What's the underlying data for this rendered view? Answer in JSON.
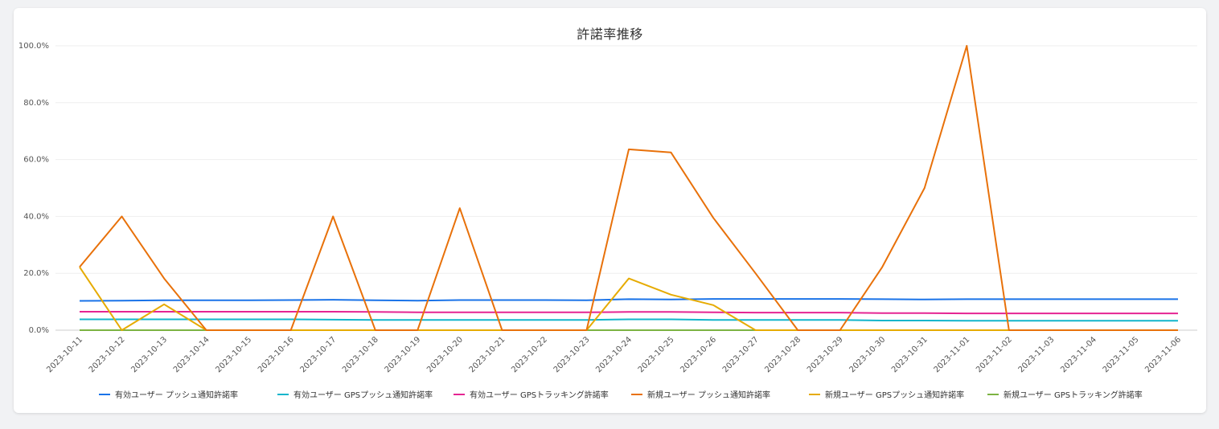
{
  "chart_data": {
    "type": "line",
    "title": "許諾率推移",
    "xlabel": "",
    "ylabel": "",
    "ylim": [
      0,
      100
    ],
    "yticks": [
      "0.0%",
      "20.0%",
      "40.0%",
      "60.0%",
      "80.0%",
      "100.0%"
    ],
    "grid": true,
    "legend_position": "bottom",
    "categories": [
      "2023-10-11",
      "2023-10-12",
      "2023-10-13",
      "2023-10-14",
      "2023-10-15",
      "2023-10-16",
      "2023-10-17",
      "2023-10-18",
      "2023-10-19",
      "2023-10-20",
      "2023-10-21",
      "2023-10-22",
      "2023-10-23",
      "2023-10-24",
      "2023-10-25",
      "2023-10-26",
      "2023-10-27",
      "2023-10-28",
      "2023-10-29",
      "2023-10-30",
      "2023-10-31",
      "2023-11-01",
      "2023-11-02",
      "2023-11-03",
      "2023-11-04",
      "2023-11-05",
      "2023-11-06"
    ],
    "series": [
      {
        "name": "有効ユーザー プッシュ通知許諾率",
        "color": "#1a73e8",
        "values": [
          10.3,
          10.4,
          10.5,
          10.5,
          10.5,
          10.6,
          10.7,
          10.5,
          10.4,
          10.6,
          10.6,
          10.6,
          10.5,
          10.9,
          10.8,
          11.0,
          11.0,
          11.0,
          11.0,
          10.9,
          10.8,
          10.9,
          10.9,
          10.9,
          10.9,
          10.9,
          10.9
        ]
      },
      {
        "name": "有効ユーザー GPSプッシュ通知許諾率",
        "color": "#12b5cb",
        "values": [
          3.8,
          3.8,
          3.8,
          3.8,
          3.8,
          3.8,
          3.7,
          3.6,
          3.6,
          3.6,
          3.6,
          3.6,
          3.6,
          3.8,
          3.8,
          3.6,
          3.6,
          3.6,
          3.6,
          3.4,
          3.4,
          3.3,
          3.3,
          3.3,
          3.3,
          3.3,
          3.3
        ]
      },
      {
        "name": "有効ユーザー GPSトラッキング許諾率",
        "color": "#e52592",
        "values": [
          6.5,
          6.5,
          6.5,
          6.5,
          6.5,
          6.5,
          6.5,
          6.4,
          6.3,
          6.3,
          6.3,
          6.3,
          6.3,
          6.4,
          6.4,
          6.3,
          6.2,
          6.2,
          6.2,
          6.0,
          6.0,
          5.9,
          5.9,
          5.9,
          5.9,
          5.9,
          5.9
        ]
      },
      {
        "name": "新規ユーザー プッシュ通知許諾率",
        "color": "#e8710a",
        "values": [
          22.2,
          40.0,
          18.2,
          0,
          0,
          0,
          40.0,
          0,
          0,
          42.9,
          0,
          0,
          0,
          63.6,
          62.5,
          39.5,
          20.0,
          0,
          0,
          22.2,
          50.0,
          100.0,
          0,
          0,
          0,
          0,
          0
        ]
      },
      {
        "name": "新規ユーザー GPSプッシュ通知許諾率",
        "color": "#e6ab02",
        "values": [
          22.2,
          0,
          9.1,
          0,
          0,
          0,
          0,
          0,
          0,
          0,
          0,
          0,
          0,
          18.2,
          12.5,
          8.8,
          0,
          0,
          0,
          0,
          0,
          0,
          0,
          0,
          0,
          0,
          0
        ]
      },
      {
        "name": "新規ユーザー GPSトラッキング許諾率",
        "color": "#7cb342",
        "values": [
          0,
          0,
          0,
          0,
          0,
          0,
          0,
          0,
          0,
          0,
          0,
          0,
          0,
          0,
          0,
          0,
          0,
          0,
          0,
          0,
          0,
          0,
          0,
          0,
          0,
          0,
          0
        ]
      }
    ]
  }
}
